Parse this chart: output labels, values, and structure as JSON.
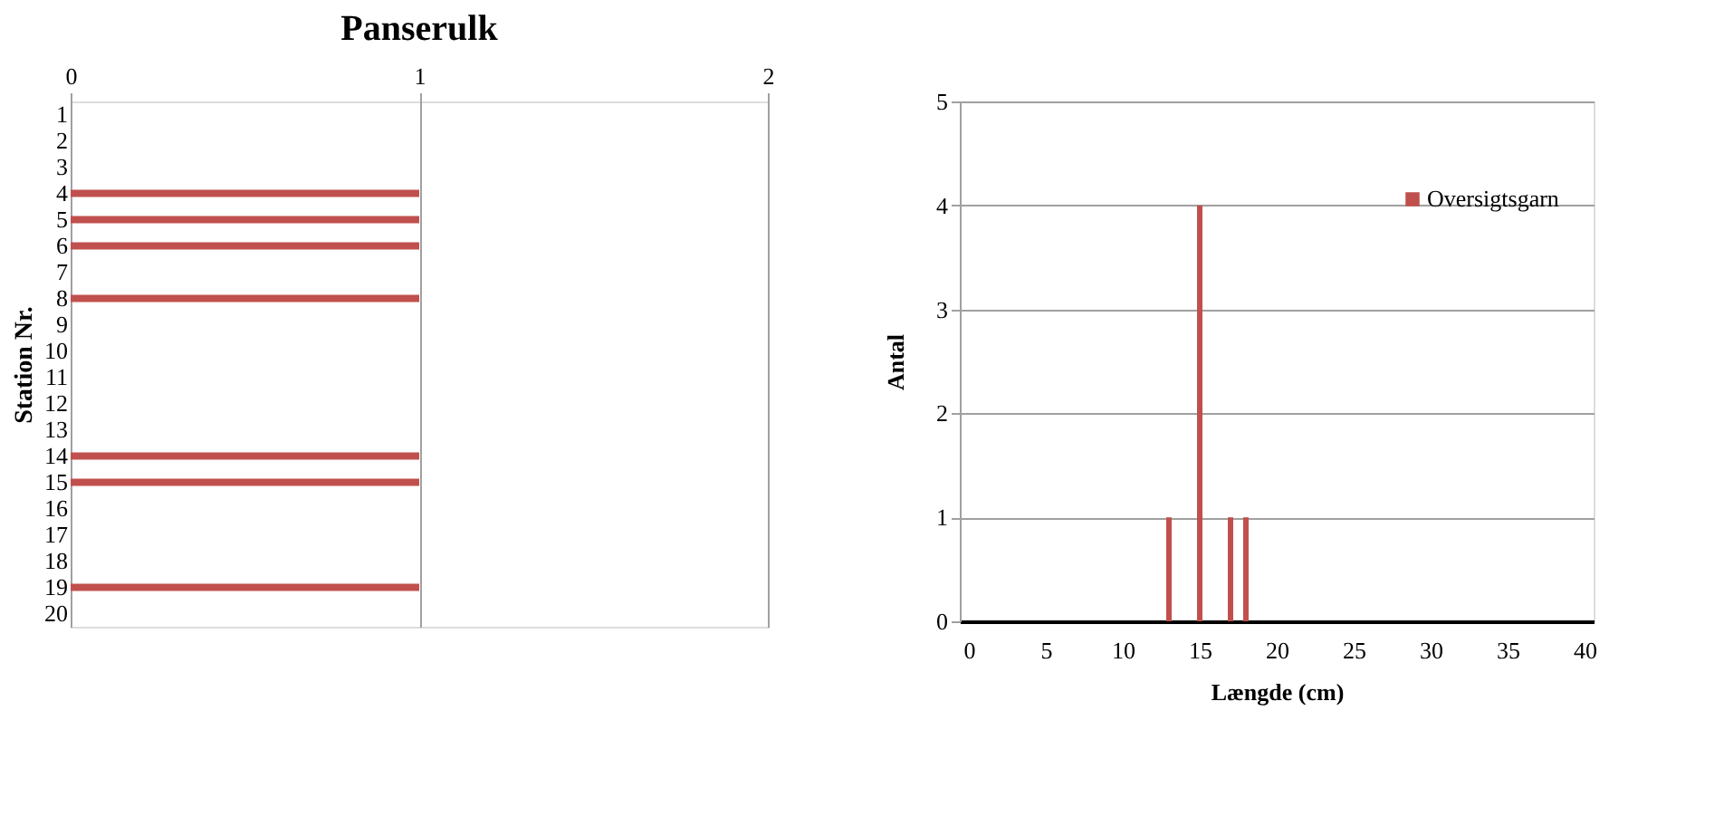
{
  "chart_data": [
    {
      "type": "bar",
      "orientation": "horizontal",
      "title": "Panserulk",
      "ylabel": "Station Nr.",
      "categories": [
        "1",
        "2",
        "3",
        "4",
        "5",
        "6",
        "7",
        "8",
        "9",
        "10",
        "11",
        "12",
        "13",
        "14",
        "15",
        "16",
        "17",
        "18",
        "19",
        "20"
      ],
      "values": [
        0,
        0,
        0,
        1,
        1,
        1,
        0,
        1,
        0,
        0,
        0,
        0,
        0,
        1,
        1,
        0,
        0,
        0,
        1,
        0
      ],
      "color": "#c0504d",
      "xlim": [
        0,
        2
      ],
      "xticks": [
        0,
        1,
        2
      ],
      "grid": "x",
      "legend": false
    },
    {
      "type": "bar",
      "xlabel": "Længde (cm)",
      "ylabel": "Antal",
      "series": [
        {
          "name": "Oversigtsgarn",
          "color": "#c0504d",
          "x": [
            13,
            15,
            17,
            18
          ],
          "values": [
            1,
            4,
            1,
            1
          ]
        }
      ],
      "xlim": [
        0,
        40
      ],
      "xticks": [
        0,
        5,
        10,
        15,
        20,
        25,
        30,
        35,
        40
      ],
      "ylim": [
        0,
        5
      ],
      "yticks": [
        0,
        1,
        2,
        3,
        4,
        5
      ],
      "grid": "y",
      "legend": "top right"
    }
  ]
}
